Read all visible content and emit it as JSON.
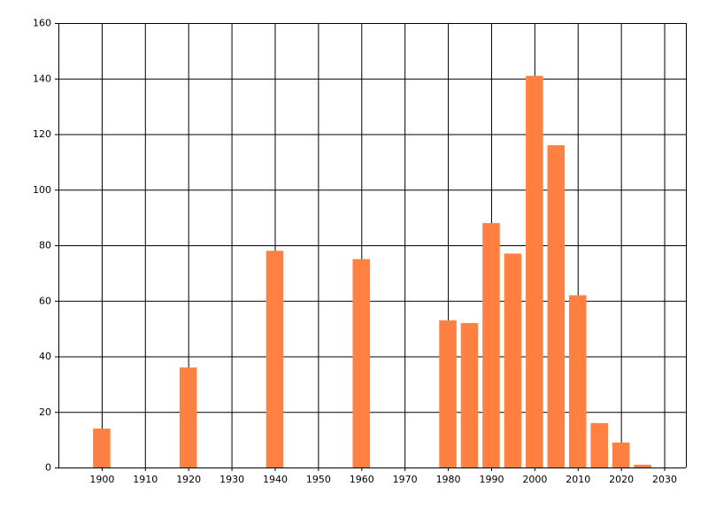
{
  "chart_data": {
    "type": "bar",
    "x": [
      1900,
      1920,
      1940,
      1960,
      1980,
      1985,
      1990,
      1995,
      2000,
      2005,
      2010,
      2015,
      2020,
      2025
    ],
    "values": [
      14,
      36,
      78,
      75,
      53,
      52,
      88,
      77,
      141,
      116,
      62,
      16,
      9,
      1
    ],
    "color": "#ff8040",
    "xlim": [
      1890,
      2035
    ],
    "xticks": [
      1900,
      1910,
      1920,
      1930,
      1940,
      1950,
      1960,
      1970,
      1980,
      1990,
      2000,
      2010,
      2020,
      2030
    ],
    "ylim": [
      0,
      160
    ],
    "yticks": [
      0,
      20,
      40,
      60,
      80,
      100,
      120,
      140,
      160
    ],
    "grid": true
  }
}
